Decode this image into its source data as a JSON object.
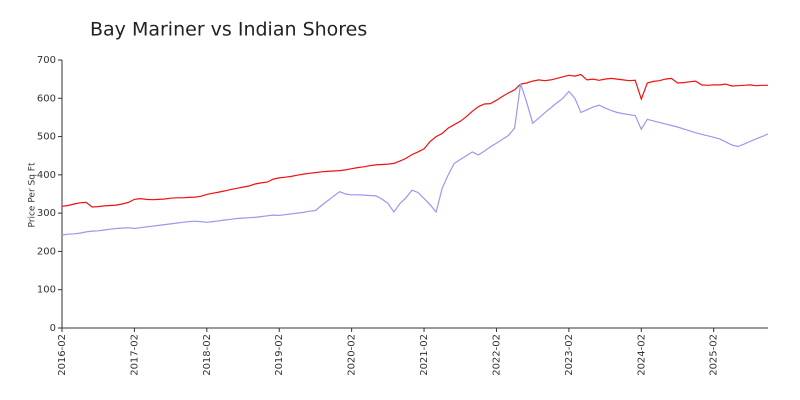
{
  "chart_data": {
    "type": "line",
    "title": "Bay Mariner vs Indian Shores",
    "ylabel": "Price Per Sq Ft",
    "categories": [
      "2016-02",
      null,
      null,
      null,
      null,
      null,
      null,
      null,
      null,
      null,
      null,
      null,
      "2017-02",
      null,
      null,
      null,
      null,
      null,
      null,
      null,
      null,
      null,
      null,
      null,
      "2018-02",
      null,
      null,
      null,
      null,
      null,
      null,
      null,
      null,
      null,
      null,
      null,
      "2019-02",
      null,
      null,
      null,
      null,
      null,
      null,
      null,
      null,
      null,
      null,
      null,
      "2020-02",
      null,
      null,
      null,
      null,
      null,
      null,
      null,
      null,
      null,
      null,
      null,
      "2021-02",
      null,
      null,
      null,
      null,
      null,
      null,
      null,
      null,
      null,
      null,
      null,
      "2022-02",
      null,
      null,
      null,
      null,
      null,
      null,
      null,
      null,
      null,
      null,
      null,
      "2023-02",
      null,
      null,
      null,
      null,
      null,
      null,
      null,
      null,
      null,
      null,
      null,
      "2024-02",
      null,
      null,
      null,
      null,
      null,
      null,
      null,
      null,
      null,
      null,
      null,
      "2025-02",
      null,
      null,
      null,
      null,
      null,
      null,
      null,
      null,
      null
    ],
    "series": [
      {
        "color": "#ee1111",
        "values": [
          318,
          320,
          324,
          327,
          328,
          316,
          317,
          319,
          320,
          321,
          324,
          328,
          336,
          338,
          336,
          335,
          336,
          337,
          339,
          340,
          340,
          341,
          342,
          344,
          349,
          352,
          355,
          358,
          362,
          365,
          368,
          371,
          376,
          379,
          381,
          389,
          392,
          394,
          396,
          399,
          402,
          404,
          406,
          408,
          409,
          410,
          411,
          413,
          416,
          419,
          421,
          424,
          426,
          427,
          428,
          430,
          436,
          443,
          453,
          460,
          468,
          487,
          500,
          508,
          522,
          531,
          540,
          552,
          566,
          578,
          585,
          586,
          595,
          605,
          614,
          622,
          637,
          640,
          645,
          648,
          646,
          648,
          652,
          656,
          660,
          658,
          662,
          648,
          650,
          647,
          650,
          652,
          650,
          648,
          646,
          647,
          598,
          640,
          644,
          646,
          650,
          652,
          640,
          641,
          643,
          645,
          635,
          634,
          635,
          635,
          637,
          632,
          633,
          634,
          635,
          633,
          634,
          634
        ]
      },
      {
        "color": "#9999ee",
        "values": [
          243,
          245,
          246,
          248,
          251,
          253,
          254,
          256,
          258,
          260,
          261,
          262,
          260,
          262,
          264,
          266,
          268,
          270,
          272,
          274,
          276,
          278,
          279,
          278,
          276,
          278,
          280,
          282,
          284,
          286,
          287,
          288,
          289,
          291,
          293,
          295,
          294,
          296,
          298,
          300,
          302,
          305,
          307,
          320,
          332,
          344,
          356,
          350,
          348,
          348,
          347,
          346,
          345,
          337,
          326,
          303,
          325,
          340,
          360,
          354,
          338,
          322,
          303,
          365,
          400,
          430,
          440,
          450,
          460,
          452,
          462,
          473,
          483,
          493,
          503,
          522,
          638,
          590,
          535,
          548,
          562,
          575,
          588,
          600,
          618,
          600,
          563,
          570,
          577,
          582,
          575,
          568,
          563,
          560,
          557,
          555,
          519,
          545,
          541,
          537,
          533,
          529,
          525,
          520,
          515,
          510,
          506,
          502,
          498,
          494,
          486,
          478,
          474,
          480,
          487,
          494,
          500,
          507
        ]
      }
    ],
    "ylim": [
      0,
      700
    ],
    "yticks": [
      0,
      100,
      200,
      300,
      400,
      500,
      600,
      700
    ]
  }
}
